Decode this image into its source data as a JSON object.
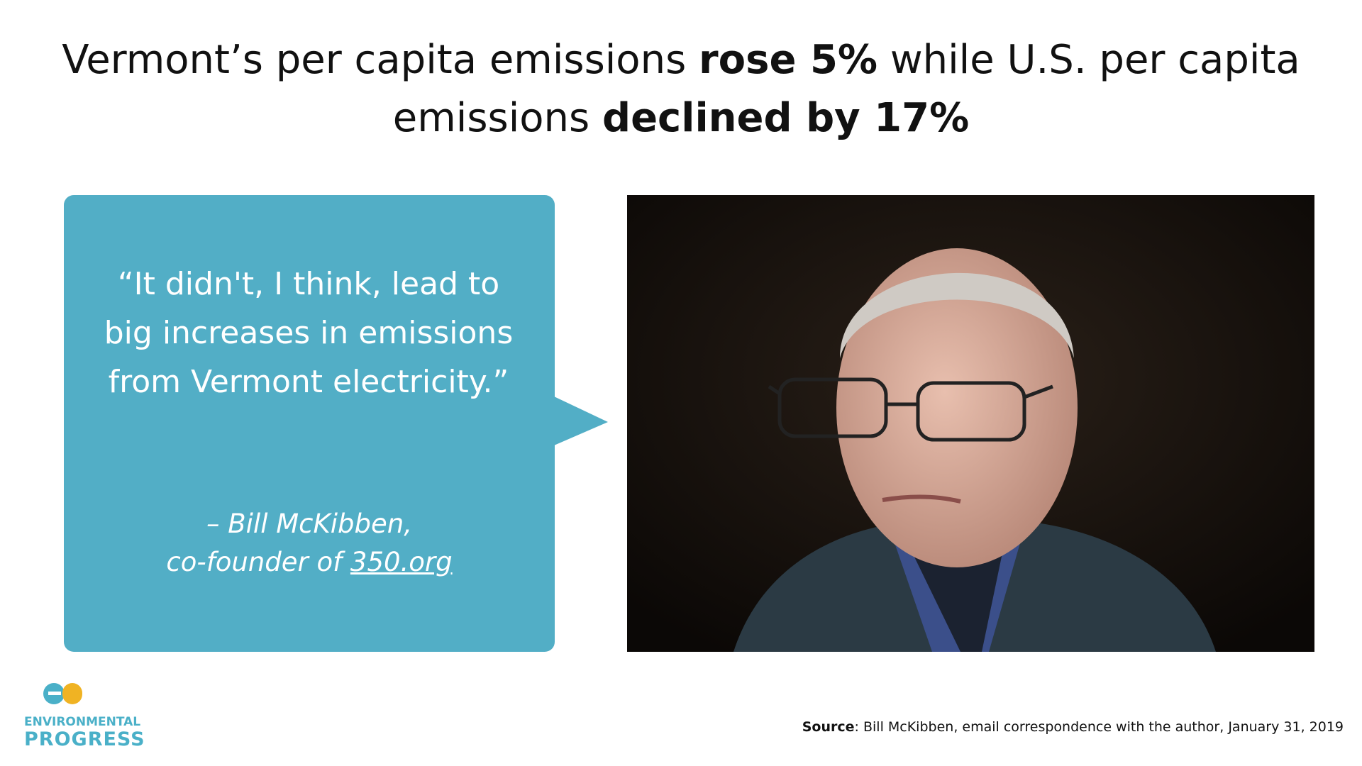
{
  "title": {
    "parts": [
      {
        "text": "Vermont’s per capita emissions ",
        "bold": false
      },
      {
        "text": "rose 5%",
        "bold": true
      },
      {
        "text": " while U.S. per capita emissions ",
        "bold": false
      },
      {
        "text": "declined by 17%",
        "bold": true
      }
    ]
  },
  "quote": {
    "text": "“It didn't, I think, lead to big increases in emissions from Vermont electricity.”",
    "attribution": {
      "line1": "– Bill McKibben,",
      "prefix": "co-founder of ",
      "link": "350.org"
    }
  },
  "source": {
    "label": "Source",
    "text": ": Bill McKibben, email correspondence with the author, January 31, 2019"
  },
  "logo": {
    "line1": "ENVIRONMENTAL",
    "line2": "PROGRESS"
  }
}
